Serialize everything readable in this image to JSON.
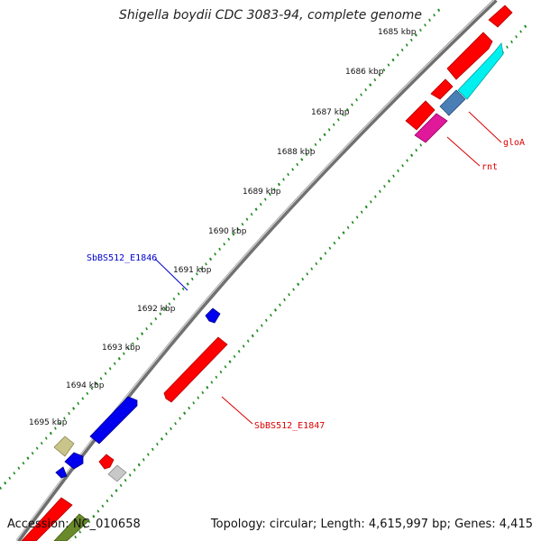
{
  "title": "Shigella boydii CDC 3083-94, complete genome",
  "accession": "Accession: NC_010658",
  "summary": "Topology: circular; Length: 4,615,997 bp; Genes: 4,415",
  "ticks": [
    {
      "label": "1685 kbp"
    },
    {
      "label": "1686 kbp"
    },
    {
      "label": "1687 kbp"
    },
    {
      "label": "1688 kbp"
    },
    {
      "label": "1689 kbp"
    },
    {
      "label": "1690 kbp"
    },
    {
      "label": "1691 kbp"
    },
    {
      "label": "1692 kbp"
    },
    {
      "label": "1693 kbp"
    },
    {
      "label": "1694 kbp"
    },
    {
      "label": "1695 kbp"
    }
  ],
  "gene_labels": [
    {
      "name": "SbBS512_E1846",
      "color": "#0000cc"
    },
    {
      "name": "SbBS512_E1847",
      "color": "#dd0000"
    },
    {
      "name": "gloA",
      "color": "#dd0000"
    },
    {
      "name": "rnt",
      "color": "#dd0000"
    }
  ],
  "colors": {
    "backbone": "#8a8a8a",
    "tick": "#1f8a1f",
    "red": "#ff0000",
    "blue": "#0000ee",
    "cyan": "#00f0f0",
    "steelblue": "#4a7fb5",
    "magenta": "#e0189a",
    "olive": "#c8c48a",
    "gray": "#c8c8c8",
    "darkolive": "#6a8a2a"
  }
}
